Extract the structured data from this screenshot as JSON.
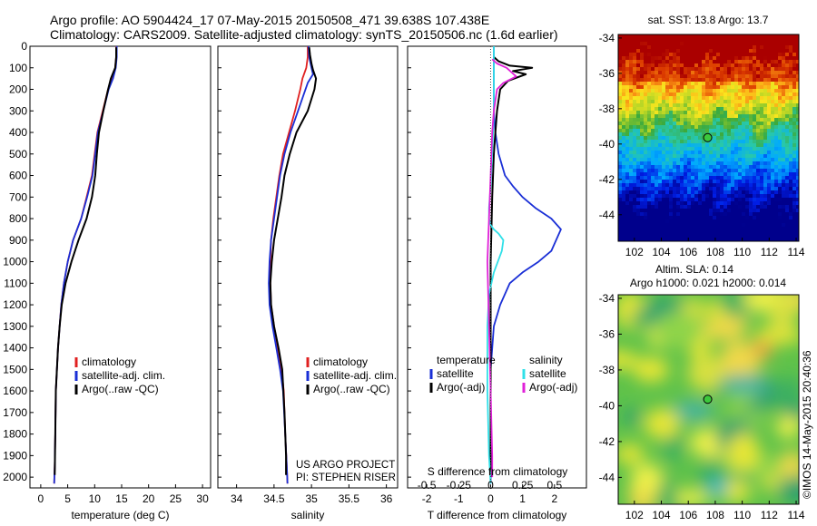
{
  "header": {
    "line1": "Argo profile: AO 5904424_17 07-May-2015 20150508_471 39.638S 107.438E",
    "line2": "Climatology: CARS2009. Satellite-adjusted climatology: synTS_20150506.nc (1.6d earlier)"
  },
  "colors": {
    "red": "#e02020",
    "blue": "#1a2fd6",
    "black": "#000000",
    "cyan": "#30e0e8",
    "magenta": "#e020d8"
  },
  "chart_data": [
    {
      "type": "line",
      "id": "temp",
      "xlabel": "temperature (deg C)",
      "ylabel": "",
      "xlim": [
        -2,
        31.5
      ],
      "ylim": [
        2050,
        0
      ],
      "xticks": [
        0,
        5,
        10,
        15,
        20,
        25,
        30
      ],
      "yticks": [
        0,
        100,
        200,
        300,
        400,
        500,
        600,
        700,
        800,
        900,
        1000,
        1100,
        1200,
        1300,
        1400,
        1500,
        1600,
        1700,
        1800,
        1900,
        2000
      ],
      "legend": {
        "placement": "bottom-right",
        "entries": [
          "climatology",
          "satellite-adj. clim.",
          "Argo(..raw -QC)"
        ]
      },
      "series": [
        {
          "name": "climatology",
          "color": "red",
          "x": [
            14,
            14,
            13.8,
            13.3,
            12.5,
            11.5,
            10.5,
            10,
            9.5,
            8.5,
            7.5,
            6,
            5,
            4.3,
            3.8,
            3.5,
            3.2,
            3,
            2.8,
            2.7,
            2.6,
            2.5
          ],
          "y": [
            0,
            50,
            100,
            150,
            200,
            300,
            400,
            500,
            600,
            700,
            800,
            900,
            1000,
            1100,
            1200,
            1300,
            1400,
            1500,
            1600,
            1800,
            1950,
            2030
          ]
        },
        {
          "name": "satellite-adj. clim.",
          "color": "blue",
          "x": [
            14.1,
            14.1,
            13.9,
            13.4,
            12.6,
            11.6,
            10.6,
            10.1,
            9.6,
            8.6,
            7.5,
            6,
            5,
            4.3,
            3.8,
            3.5,
            3.2,
            3,
            2.8,
            2.7,
            2.6,
            2.5
          ],
          "y": [
            0,
            50,
            100,
            150,
            200,
            300,
            400,
            500,
            600,
            700,
            800,
            900,
            1000,
            1100,
            1200,
            1300,
            1400,
            1500,
            1600,
            1800,
            1950,
            2030
          ]
        },
        {
          "name": "Argo(..raw -QC)",
          "color": "black",
          "x": [
            14,
            14,
            13.8,
            13,
            12.5,
            11.6,
            10.8,
            10.4,
            10.1,
            9.5,
            8.5,
            7,
            5.7,
            4.6,
            3.9,
            3.5,
            3.2,
            3,
            2.8,
            2.7,
            2.6
          ],
          "y": [
            5,
            50,
            100,
            150,
            200,
            300,
            400,
            500,
            600,
            700,
            800,
            900,
            1000,
            1100,
            1200,
            1300,
            1400,
            1500,
            1600,
            1800,
            1990
          ]
        }
      ]
    },
    {
      "type": "line",
      "id": "sal",
      "xlabel": "salinity",
      "ylabel": "",
      "xlim": [
        33.75,
        36.15
      ],
      "ylim": [
        2050,
        0
      ],
      "xticks": [
        34,
        34.5,
        35,
        35.5,
        36
      ],
      "legend": {
        "placement": "bottom-right",
        "entries": [
          "climatology",
          "satellite-adj. clim.",
          "Argo(..raw -QC)"
        ]
      },
      "annotation": [
        "US ARGO PROJECT",
        "PI: STEPHEN RISER"
      ],
      "series": [
        {
          "name": "climatology",
          "color": "red",
          "x": [
            34.95,
            34.95,
            34.93,
            34.88,
            34.85,
            34.78,
            34.7,
            34.62,
            34.57,
            34.53,
            34.49,
            34.46,
            34.45,
            34.45,
            34.46,
            34.5,
            34.55,
            34.6,
            34.63,
            34.65,
            34.67,
            34.68
          ],
          "y": [
            0,
            50,
            100,
            150,
            200,
            300,
            400,
            500,
            600,
            700,
            800,
            900,
            1000,
            1100,
            1200,
            1300,
            1400,
            1500,
            1600,
            1800,
            1950,
            2030
          ]
        },
        {
          "name": "satellite-adj. clim.",
          "color": "blue",
          "x": [
            34.96,
            34.97,
            35,
            35.02,
            34.95,
            34.82,
            34.72,
            34.64,
            34.58,
            34.54,
            34.5,
            34.46,
            34.44,
            34.43,
            34.44,
            34.48,
            34.53,
            34.58,
            34.62,
            34.65,
            34.67,
            34.68
          ],
          "y": [
            0,
            50,
            100,
            130,
            170,
            300,
            400,
            500,
            600,
            700,
            800,
            900,
            1000,
            1100,
            1200,
            1300,
            1400,
            1500,
            1600,
            1800,
            1950,
            2030
          ]
        },
        {
          "name": "Argo(..raw -QC)",
          "color": "black",
          "x": [
            34.97,
            34.98,
            35,
            35.02,
            35.06,
            35.04,
            34.95,
            34.8,
            34.71,
            34.64,
            34.6,
            34.55,
            34.5,
            34.47,
            34.45,
            34.46,
            34.5,
            34.56,
            34.61,
            34.64,
            34.66,
            34.66
          ],
          "y": [
            5,
            40,
            80,
            110,
            150,
            200,
            300,
            400,
            500,
            600,
            700,
            800,
            900,
            1000,
            1100,
            1200,
            1300,
            1400,
            1500,
            1700,
            1900,
            1990
          ]
        }
      ]
    },
    {
      "type": "line",
      "id": "diff",
      "xlabel": "T difference from climatology",
      "xlabel_top": "S difference from climatology",
      "xlim": [
        -2.6,
        3.0
      ],
      "ylim": [
        2050,
        0
      ],
      "xticks": [
        -2,
        -1,
        0,
        1,
        2
      ],
      "xticks_s": [
        {
          "v": -2,
          "label": "-0.5"
        },
        {
          "v": -1,
          "label": "-0.25"
        },
        {
          "v": 0,
          "label": "0"
        },
        {
          "v": 1,
          "label": "0.25"
        },
        {
          "v": 2,
          "label": "0.5"
        }
      ],
      "legend": {
        "placement": "bottom-center",
        "groups": [
          {
            "title": "temperature",
            "entries": [
              "satellite",
              "Argo(-adj)"
            ]
          },
          {
            "title": "salinity",
            "entries": [
              "satellite",
              "Argo(-adj)"
            ]
          }
        ]
      },
      "series": [
        {
          "name": "temperature satellite",
          "color": "blue",
          "x": [
            0.1,
            0.1,
            0.1,
            0.1,
            0.15,
            0.25,
            0.45,
            0.7,
            1,
            1.4,
            1.9,
            2.2,
            1.9,
            1.5,
            1,
            0.6,
            0.3,
            0.1,
            0,
            0,
            0
          ],
          "y": [
            0,
            100,
            200,
            300,
            400,
            500,
            600,
            650,
            700,
            750,
            800,
            850,
            950,
            1000,
            1050,
            1100,
            1200,
            1300,
            1500,
            1800,
            2030
          ]
        },
        {
          "name": "temperature Argo(-adj)",
          "color": "black",
          "x": [
            0.1,
            0.25,
            0.6,
            1.3,
            0.7,
            1.1,
            0.55,
            0.3,
            0.2,
            0.15,
            0.1,
            0.05,
            0,
            0,
            0
          ],
          "y": [
            50,
            70,
            90,
            100,
            115,
            130,
            160,
            200,
            300,
            400,
            500,
            700,
            1000,
            1500,
            2000
          ]
        },
        {
          "name": "salinity satellite",
          "color": "cyan",
          "x": [
            0.1,
            0.1,
            0.1,
            0.05,
            0,
            -0.05,
            -0.05,
            0,
            0.1,
            0.25,
            0.4,
            0.35,
            0.1,
            -0.05,
            -0.1,
            -0.1,
            -0.05,
            0
          ],
          "y": [
            0,
            100,
            300,
            500,
            650,
            750,
            800,
            830,
            850,
            870,
            900,
            950,
            1050,
            1150,
            1300,
            1600,
            1900,
            2030
          ]
        },
        {
          "name": "salinity Argo(-adj)",
          "color": "magenta",
          "x": [
            0.05,
            0.2,
            0.5,
            0.8,
            0.4,
            0.2,
            0.1,
            0.05,
            0,
            -0.05,
            -0.1,
            -0.05,
            0,
            0.05,
            0.05
          ],
          "y": [
            60,
            80,
            100,
            140,
            170,
            200,
            300,
            400,
            600,
            800,
            1000,
            1300,
            1600,
            1900,
            2000
          ]
        }
      ]
    },
    {
      "type": "heatmap",
      "id": "sst",
      "title": "sat. SST: 13.8  Argo: 13.7",
      "xlim": [
        100.8,
        114.2
      ],
      "ylim": [
        -45.5,
        -33.8
      ],
      "xticks": [
        102,
        104,
        106,
        108,
        110,
        112,
        114
      ],
      "yticks": [
        -34,
        -36,
        -38,
        -40,
        -42,
        -44
      ],
      "marker": {
        "lon": 107.438,
        "lat": -39.638
      }
    },
    {
      "type": "heatmap",
      "id": "sla",
      "title": "Altim. SLA: 0.14",
      "subtitle": "Argo h1000: 0.021  h2000: 0.014",
      "xlim": [
        100.8,
        114.2
      ],
      "ylim": [
        -45.5,
        -33.8
      ],
      "xticks": [
        102,
        104,
        106,
        108,
        110,
        112,
        114
      ],
      "yticks": [
        -34,
        -36,
        -38,
        -40,
        -42,
        -44
      ],
      "marker": {
        "lon": 107.438,
        "lat": -39.638
      }
    }
  ],
  "footer": {
    "imos_stamp": "©IMOS 14-May-2015 20:40:36"
  }
}
